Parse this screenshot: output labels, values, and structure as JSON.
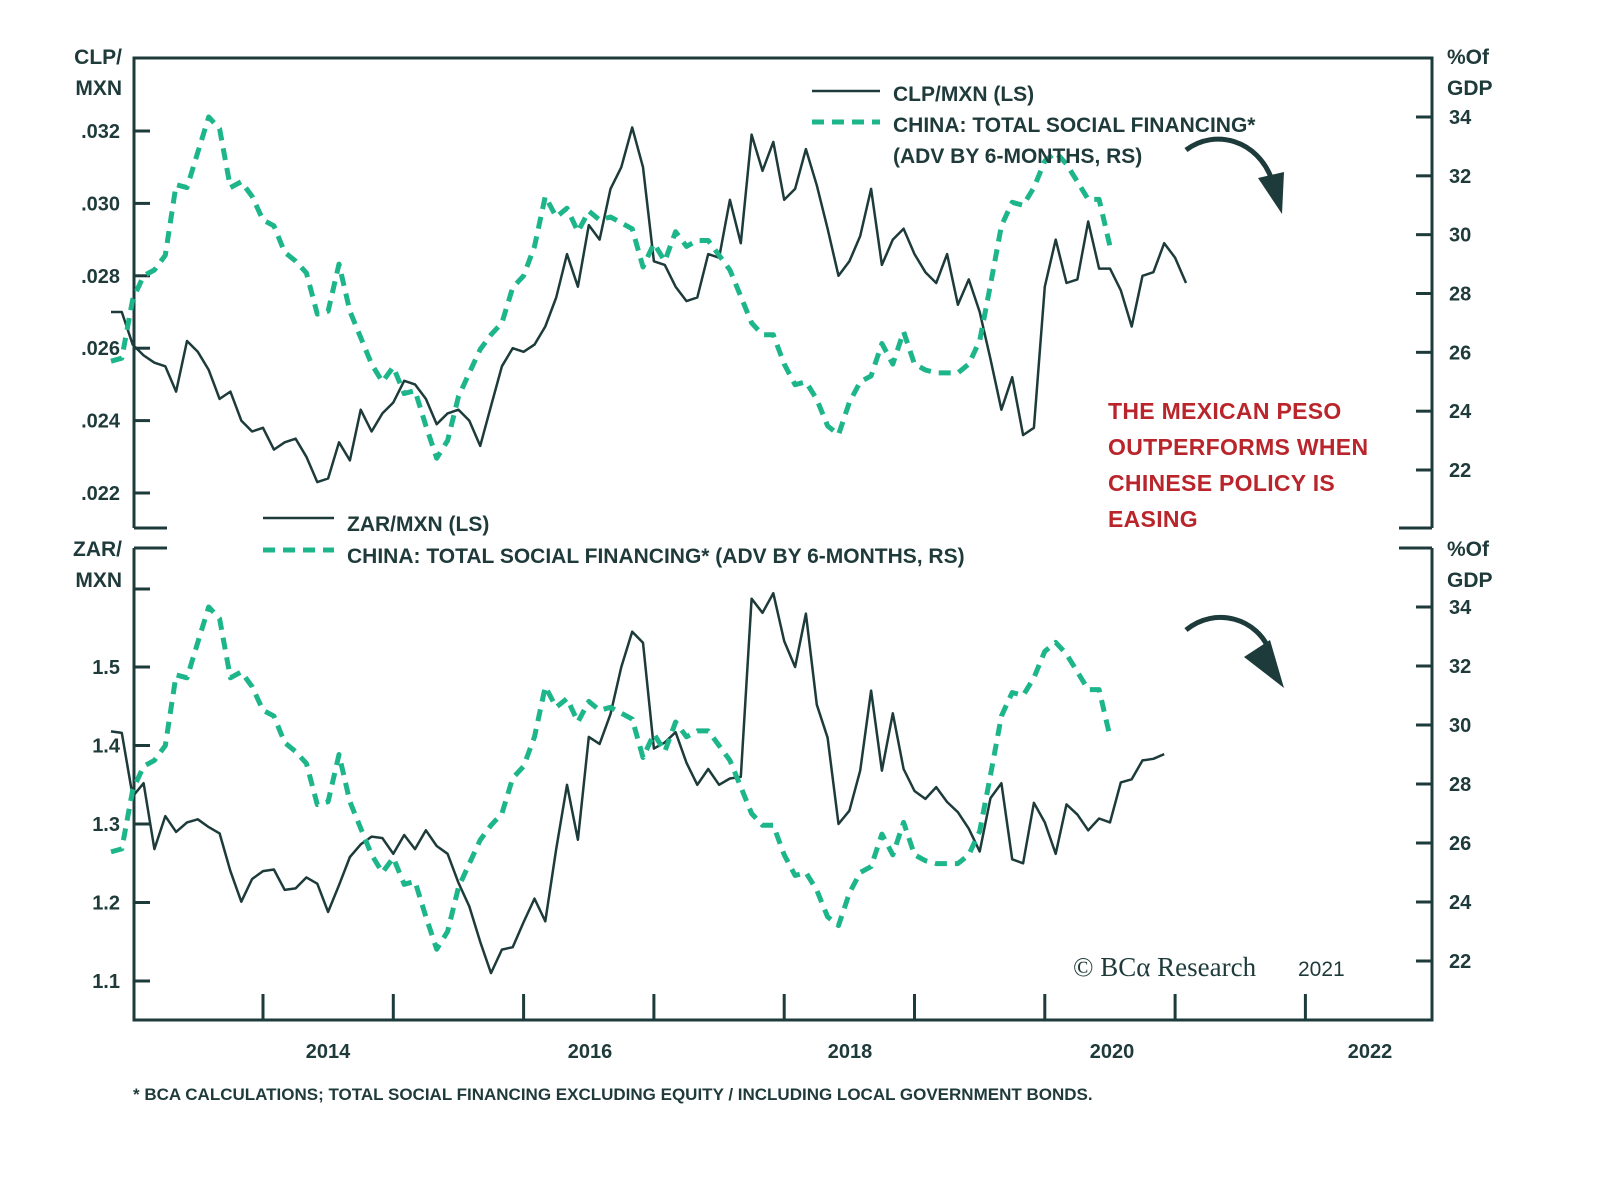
{
  "colors": {
    "frame": "#1d3b3a",
    "fx_line": "#1d3b3a",
    "tsf_line": "#1db58a",
    "annotation": "#b9252b",
    "arrow": "#1d3b3a"
  },
  "footnote": "* BCA CALCULATIONS; TOTAL SOCIAL FINANCING EXCLUDING EQUITY / INCLUDING LOCAL GOVERNMENT BONDS.",
  "copyright": {
    "text": "© BCα Research",
    "year": "2021"
  },
  "annotation": {
    "lines": [
      "THE MEXICAN PESO",
      "OUTPERFORMS WHEN",
      "CHINESE POLICY IS",
      "EASING"
    ]
  },
  "chart_data": [
    {
      "type": "line",
      "title": "",
      "panel": "top",
      "xlabel": "",
      "x_ticks": [
        "2014",
        "2016",
        "2018",
        "2020",
        "2022"
      ],
      "x_range": [
        "2012-10",
        "2022-12"
      ],
      "left_axis": {
        "label_lines": [
          "CLP/",
          "MXN"
        ],
        "ticks": [
          ".032",
          ".030",
          ".028",
          ".026",
          ".024",
          ".022"
        ],
        "tick_values": [
          0.032,
          0.03,
          0.028,
          0.026,
          0.024,
          0.022
        ],
        "range": [
          0.0212,
          0.0342
        ]
      },
      "right_axis": {
        "label_lines": [
          "%Of",
          "GDP"
        ],
        "ticks": [
          "34",
          "32",
          "30",
          "28",
          "26",
          "24",
          "22"
        ],
        "tick_values": [
          34,
          32,
          30,
          28,
          26,
          24,
          22
        ],
        "range": [
          20.1,
          36.0
        ]
      },
      "legend": {
        "position": "top-right",
        "entries": [
          "CLP/MXN (LS)",
          "CHINA: TOTAL SOCIAL FINANCING*",
          "(ADV BY 6-MONTHS, RS)"
        ]
      },
      "series": [
        {
          "name": "CLP/MXN (LS)",
          "axis": "left",
          "style": "solid",
          "start": "2012-11",
          "values": [
            0.027,
            0.027,
            0.0261,
            0.0258,
            0.0256,
            0.0255,
            0.0248,
            0.0262,
            0.0259,
            0.0254,
            0.0246,
            0.0248,
            0.024,
            0.0237,
            0.0238,
            0.0232,
            0.0234,
            0.0235,
            0.023,
            0.0223,
            0.0224,
            0.0234,
            0.0229,
            0.0243,
            0.0237,
            0.0242,
            0.0245,
            0.0251,
            0.025,
            0.0246,
            0.0239,
            0.0242,
            0.0243,
            0.024,
            0.0233,
            0.0244,
            0.0255,
            0.026,
            0.0259,
            0.0261,
            0.0266,
            0.0274,
            0.0286,
            0.0277,
            0.0294,
            0.029,
            0.0304,
            0.031,
            0.0321,
            0.031,
            0.0284,
            0.0283,
            0.0277,
            0.0273,
            0.0274,
            0.0286,
            0.0285,
            0.0301,
            0.0289,
            0.0319,
            0.0309,
            0.0317,
            0.0301,
            0.0304,
            0.0315,
            0.0305,
            0.0293,
            0.028,
            0.0284,
            0.0291,
            0.0304,
            0.0283,
            0.029,
            0.0293,
            0.0286,
            0.0281,
            0.0278,
            0.0286,
            0.0272,
            0.0279,
            0.027,
            0.0257,
            0.0243,
            0.0252,
            0.0236,
            0.0238,
            0.0277,
            0.029,
            0.0278,
            0.0279,
            0.0295,
            0.0282,
            0.0282,
            0.0276,
            0.0266,
            0.028,
            0.0281,
            0.0289,
            0.0285,
            0.0278
          ]
        },
        {
          "name": "CHINA: TOTAL SOCIAL FINANCING* (ADV BY 6-MONTHS, RS)",
          "axis": "right",
          "style": "dashed",
          "start": "2012-11",
          "values": [
            25.7,
            25.8,
            27.8,
            28.6,
            28.8,
            29.3,
            31.7,
            31.6,
            32.8,
            34.0,
            33.6,
            31.6,
            31.8,
            31.3,
            30.5,
            30.3,
            29.4,
            29.1,
            28.7,
            27.3,
            27.4,
            29.0,
            27.4,
            26.5,
            25.6,
            25.0,
            25.5,
            24.6,
            24.7,
            23.5,
            22.4,
            23.0,
            24.5,
            25.3,
            26.1,
            26.6,
            27.0,
            28.2,
            28.6,
            29.6,
            31.3,
            30.6,
            30.9,
            30.1,
            30.8,
            30.5,
            30.6,
            30.4,
            30.2,
            28.9,
            29.7,
            29.1,
            30.1,
            29.6,
            29.8,
            29.8,
            29.3,
            28.8,
            27.9,
            27.0,
            26.6,
            26.6,
            25.6,
            24.9,
            25.0,
            24.4,
            23.5,
            23.2,
            24.3,
            25.0,
            25.2,
            26.3,
            25.6,
            26.7,
            25.6,
            25.4,
            25.3,
            25.3,
            25.3,
            25.6,
            26.4,
            28.3,
            30.3,
            31.1,
            31.0,
            31.6,
            32.5,
            32.8,
            32.4,
            31.8,
            31.2,
            31.2,
            29.6
          ]
        }
      ],
      "annotations": [
        "curved arrow pointing down after TSF peak"
      ]
    },
    {
      "type": "line",
      "title": "",
      "panel": "bottom",
      "xlabel": "",
      "x_ticks": [
        "2014",
        "2016",
        "2018",
        "2020",
        "2022"
      ],
      "x_range": [
        "2012-10",
        "2022-12"
      ],
      "left_axis": {
        "label_lines": [
          "ZAR/",
          "MXN"
        ],
        "ticks": [
          "1.5",
          "1.4",
          "1.3",
          "1.2",
          "1.1"
        ],
        "tick_values": [
          1.5,
          1.4,
          1.3,
          1.2,
          1.1
        ],
        "range": [
          1.05,
          1.645
        ]
      },
      "right_axis": {
        "label_lines": [
          "%Of",
          "GDP"
        ],
        "ticks": [
          "34",
          "32",
          "30",
          "28",
          "26",
          "24",
          "22"
        ],
        "tick_values": [
          34,
          32,
          30,
          28,
          26,
          24,
          22
        ],
        "range": [
          20.0,
          36.0
        ]
      },
      "legend": {
        "position": "top-left",
        "entries": [
          "ZAR/MXN (LS)",
          "CHINA: TOTAL SOCIAL FINANCING* (ADV BY 6-MONTHS, RS)"
        ]
      },
      "series": [
        {
          "name": "ZAR/MXN (LS)",
          "axis": "left",
          "style": "solid",
          "start": "2012-11",
          "values": [
            1.418,
            1.416,
            1.335,
            1.352,
            1.268,
            1.31,
            1.29,
            1.302,
            1.306,
            1.296,
            1.288,
            1.24,
            1.201,
            1.23,
            1.24,
            1.242,
            1.216,
            1.218,
            1.232,
            1.224,
            1.188,
            1.222,
            1.258,
            1.274,
            1.284,
            1.282,
            1.262,
            1.286,
            1.268,
            1.292,
            1.272,
            1.262,
            1.225,
            1.195,
            1.15,
            1.11,
            1.14,
            1.143,
            1.175,
            1.205,
            1.176,
            1.268,
            1.35,
            1.28,
            1.411,
            1.402,
            1.44,
            1.5,
            1.545,
            1.531,
            1.396,
            1.404,
            1.417,
            1.378,
            1.35,
            1.37,
            1.35,
            1.358,
            1.36,
            1.587,
            1.569,
            1.594,
            1.533,
            1.5,
            1.568,
            1.452,
            1.41,
            1.3,
            1.317,
            1.368,
            1.47,
            1.368,
            1.441,
            1.37,
            1.342,
            1.332,
            1.347,
            1.328,
            1.315,
            1.294,
            1.265,
            1.333,
            1.352,
            1.255,
            1.25,
            1.327,
            1.302,
            1.262,
            1.325,
            1.312,
            1.292,
            1.307,
            1.302,
            1.353,
            1.357,
            1.381,
            1.383,
            1.389
          ]
        },
        {
          "name": "CHINA: TOTAL SOCIAL FINANCING* (ADV BY 6-MONTHS, RS)",
          "axis": "right",
          "style": "dashed",
          "start": "2012-11",
          "values": [
            25.7,
            25.8,
            27.8,
            28.6,
            28.8,
            29.3,
            31.7,
            31.6,
            32.8,
            34.0,
            33.6,
            31.6,
            31.8,
            31.3,
            30.5,
            30.3,
            29.4,
            29.1,
            28.7,
            27.3,
            27.4,
            29.0,
            27.4,
            26.5,
            25.6,
            25.0,
            25.5,
            24.6,
            24.7,
            23.5,
            22.4,
            23.0,
            24.5,
            25.3,
            26.1,
            26.6,
            27.0,
            28.2,
            28.6,
            29.6,
            31.3,
            30.6,
            30.9,
            30.1,
            30.8,
            30.5,
            30.6,
            30.4,
            30.2,
            28.9,
            29.7,
            29.1,
            30.1,
            29.6,
            29.8,
            29.8,
            29.3,
            28.8,
            27.9,
            27.0,
            26.6,
            26.6,
            25.6,
            24.9,
            25.0,
            24.4,
            23.5,
            23.2,
            24.3,
            25.0,
            25.2,
            26.3,
            25.6,
            26.7,
            25.6,
            25.4,
            25.3,
            25.3,
            25.3,
            25.6,
            26.4,
            28.3,
            30.3,
            31.1,
            31.0,
            31.6,
            32.5,
            32.8,
            32.4,
            31.8,
            31.2,
            31.2,
            29.6
          ]
        }
      ],
      "annotations": [
        "curved arrow pointing down after TSF peak"
      ]
    }
  ]
}
